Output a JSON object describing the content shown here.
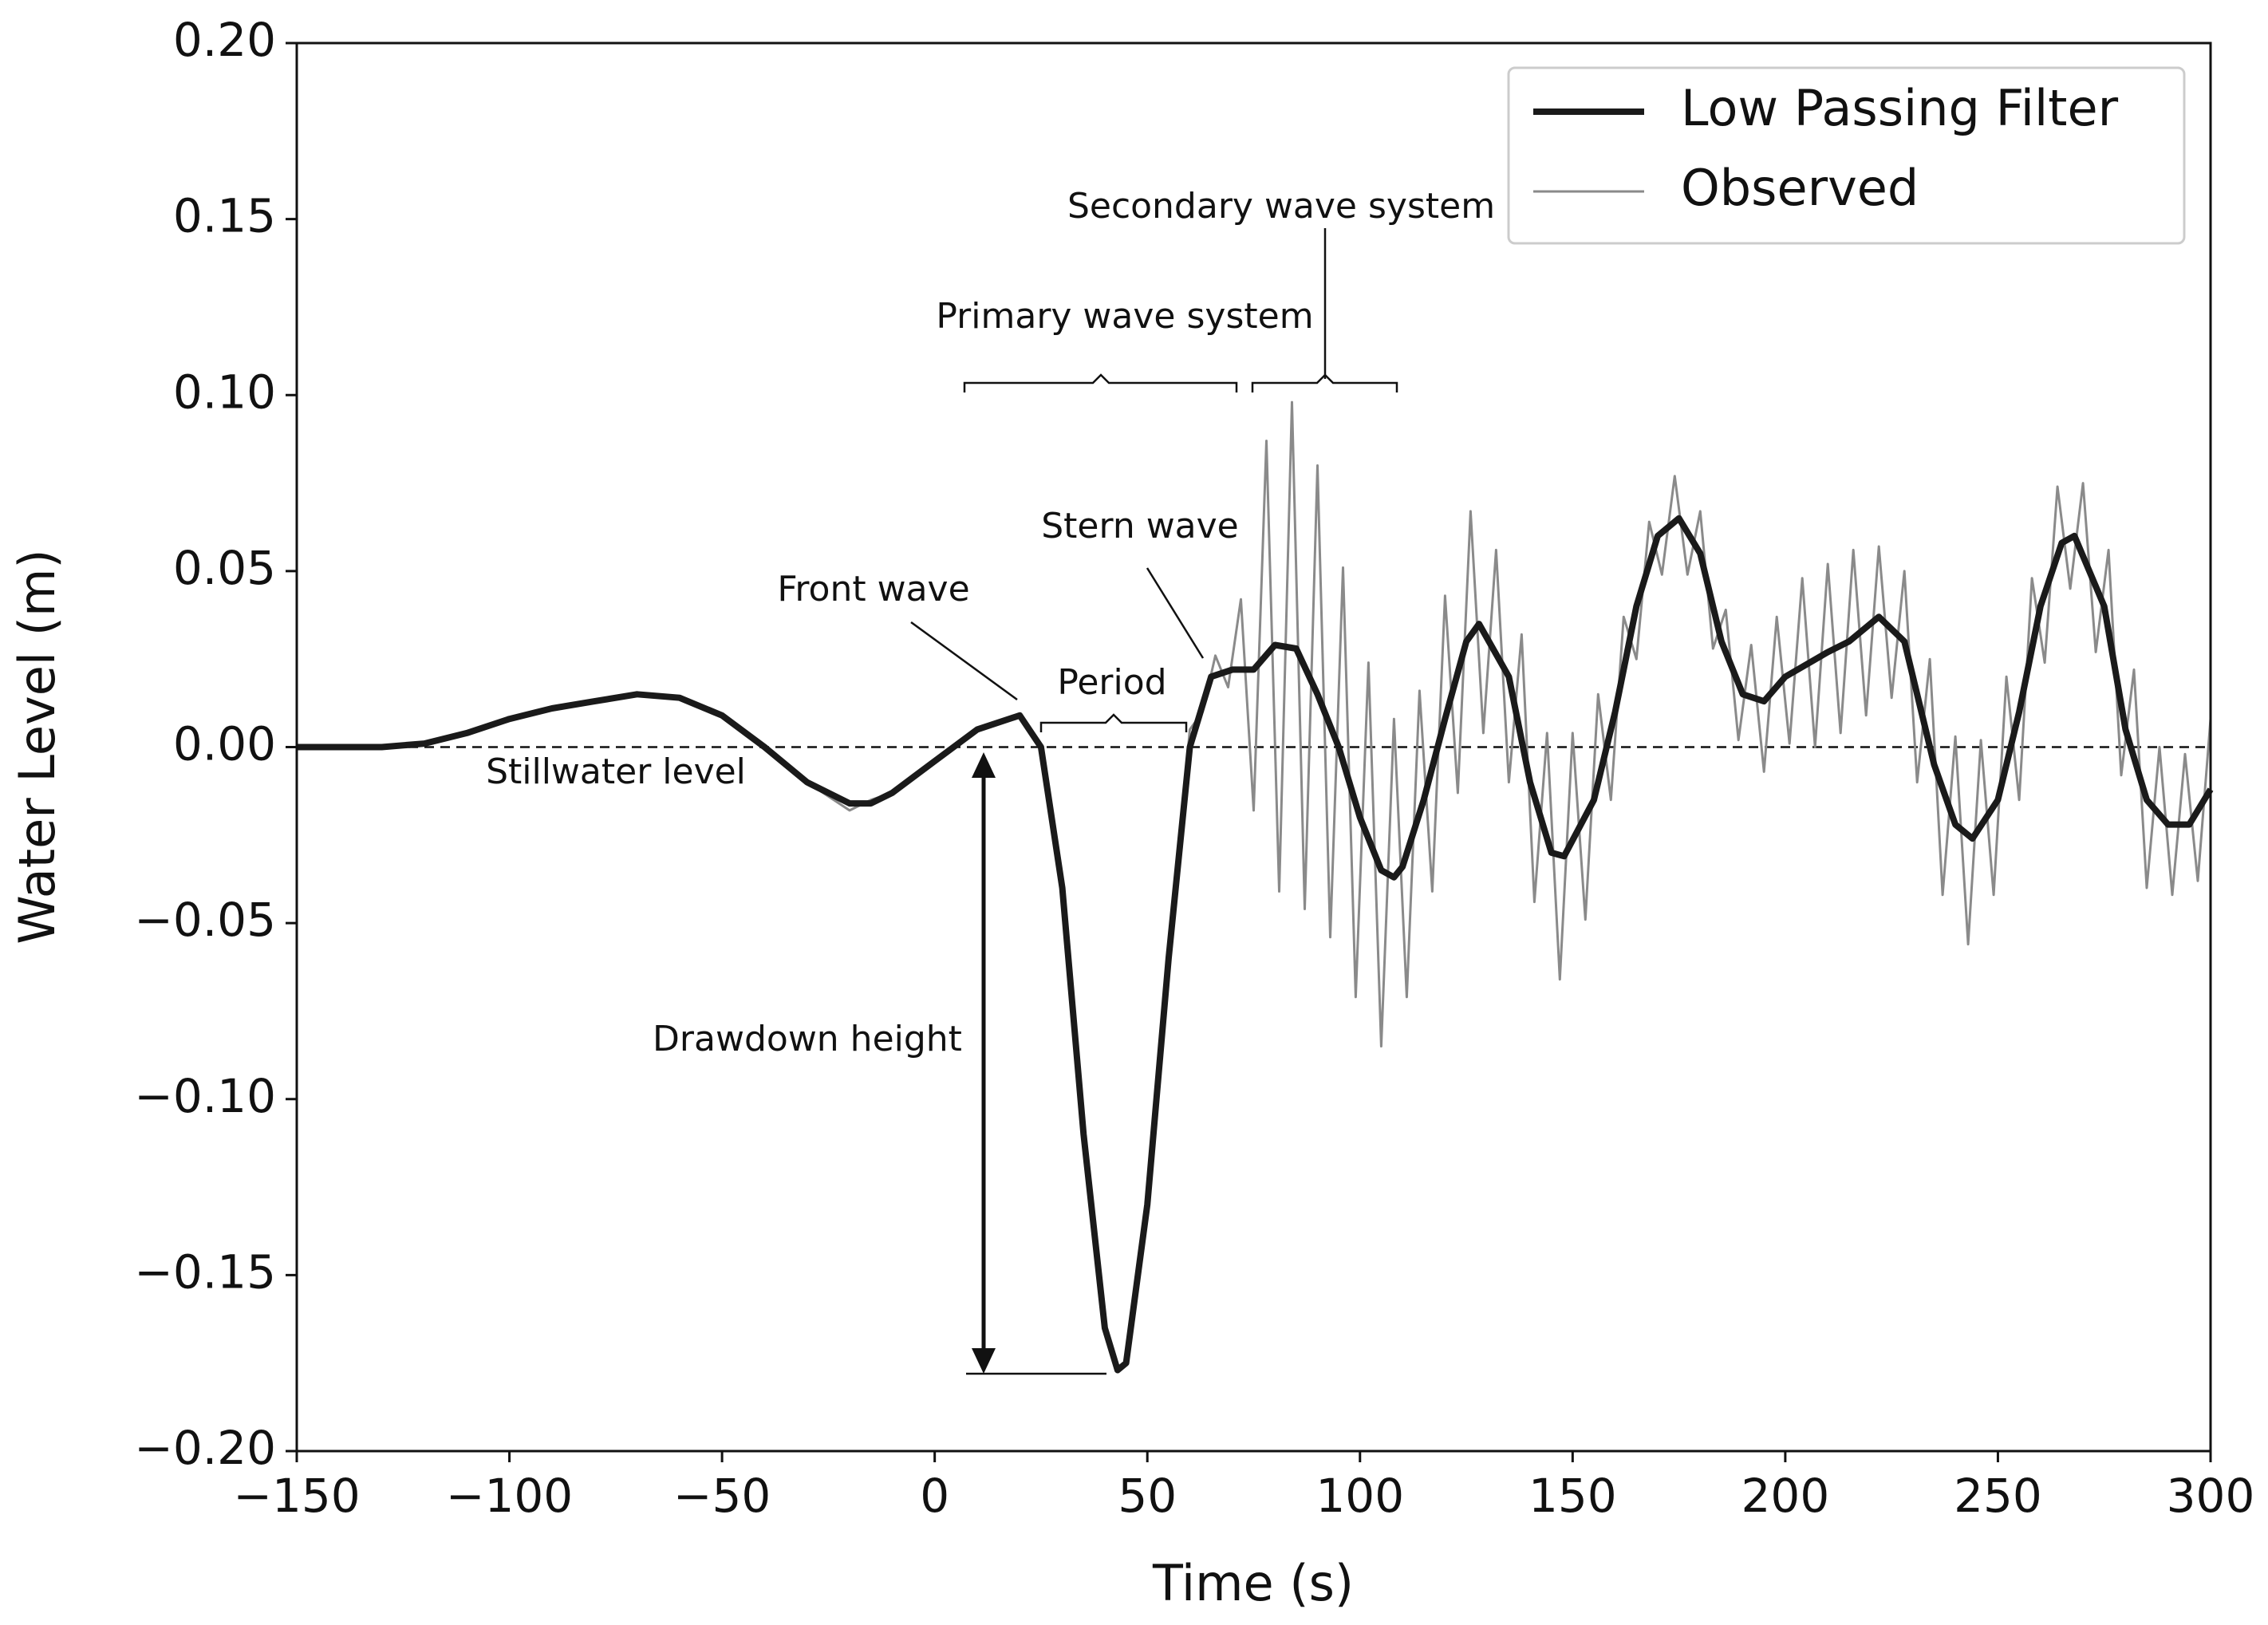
{
  "chart_data": {
    "type": "line",
    "xlabel": "Time (s)",
    "ylabel": "Water Level (m)",
    "xlim": [
      -150,
      300
    ],
    "ylim": [
      -0.2,
      0.2
    ],
    "xticks": [
      {
        "value": -150,
        "label": "−150"
      },
      {
        "value": -100,
        "label": "−100"
      },
      {
        "value": -50,
        "label": "−50"
      },
      0,
      50,
      100,
      150,
      200,
      250,
      300
    ],
    "yticks": [
      {
        "value": -0.2,
        "label": "−0.20"
      },
      {
        "value": -0.15,
        "label": "−0.15"
      },
      {
        "value": -0.1,
        "label": "−0.10"
      },
      {
        "value": -0.05,
        "label": "−0.05"
      },
      {
        "value": 0,
        "label": "0.00"
      },
      0.05,
      {
        "value": 0.1,
        "label": "0.10"
      },
      0.15,
      {
        "value": 0.2,
        "label": "0.20"
      }
    ],
    "legend": "upper right",
    "annotations": [
      "Secondary wave system",
      "Primary wave system",
      "Stern wave",
      "Front wave",
      "Period",
      "Stillwater level",
      "Drawdown height"
    ],
    "series": [
      {
        "name": "Low Passing Filter",
        "color": "#1a1a1a",
        "x": [
          -150,
          -140,
          -130,
          -120,
          -110,
          -100,
          -90,
          -80,
          -70,
          -60,
          -50,
          -40,
          -30,
          -20,
          -15,
          -10,
          0,
          10,
          20,
          25,
          30,
          35,
          40,
          43,
          45,
          50,
          55,
          60,
          65,
          70,
          75,
          80,
          85,
          90,
          95,
          100,
          105,
          108,
          110,
          115,
          120,
          125,
          128,
          135,
          140,
          145,
          148,
          155,
          160,
          165,
          170,
          175,
          180,
          185,
          190,
          195,
          200,
          210,
          215,
          222,
          228,
          235,
          240,
          244,
          250,
          255,
          260,
          265,
          268,
          275,
          280,
          285,
          290,
          295,
          300
        ],
        "values": [
          0,
          0,
          0,
          0.001,
          0.004,
          0.008,
          0.011,
          0.013,
          0.015,
          0.014,
          0.009,
          0.0,
          -0.01,
          -0.016,
          -0.016,
          -0.013,
          -0.004,
          0.005,
          0.009,
          0.0,
          -0.04,
          -0.11,
          -0.165,
          -0.177,
          -0.175,
          -0.13,
          -0.06,
          0.0,
          0.02,
          0.022,
          0.022,
          0.029,
          0.028,
          0.015,
          0.0,
          -0.02,
          -0.035,
          -0.037,
          -0.034,
          -0.015,
          0.008,
          0.03,
          0.035,
          0.02,
          -0.01,
          -0.03,
          -0.031,
          -0.015,
          0.01,
          0.04,
          0.06,
          0.065,
          0.055,
          0.03,
          0.015,
          0.013,
          0.02,
          0.027,
          0.03,
          0.037,
          0.03,
          -0.005,
          -0.022,
          -0.026,
          -0.015,
          0.01,
          0.04,
          0.058,
          0.06,
          0.04,
          0.005,
          -0.015,
          -0.022,
          -0.022,
          -0.012
        ]
      },
      {
        "name": "Observed",
        "color": "#8a8a8a",
        "x": [
          -150,
          -140,
          -130,
          -120,
          -110,
          -100,
          -90,
          -80,
          -70,
          -60,
          -50,
          -40,
          -30,
          -25,
          -20,
          -15,
          -10,
          0,
          10,
          20,
          25,
          30,
          35,
          40,
          43,
          45,
          50,
          55,
          60,
          63,
          66,
          69,
          72,
          75,
          78,
          81,
          84,
          87,
          90,
          93,
          96,
          99,
          102,
          105,
          108,
          111,
          114,
          117,
          120,
          123,
          126,
          129,
          132,
          135,
          138,
          141,
          144,
          147,
          150,
          153,
          156,
          159,
          162,
          165,
          168,
          171,
          174,
          177,
          180,
          183,
          186,
          189,
          192,
          195,
          198,
          201,
          204,
          207,
          210,
          213,
          216,
          219,
          222,
          225,
          228,
          231,
          234,
          237,
          240,
          243,
          246,
          249,
          252,
          255,
          258,
          261,
          264,
          267,
          270,
          273,
          276,
          279,
          282,
          285,
          288,
          291,
          294,
          297,
          300
        ],
        "values": [
          0,
          0,
          0,
          0.001,
          0.004,
          0.008,
          0.011,
          0.013,
          0.015,
          0.014,
          0.009,
          0.0,
          -0.01,
          -0.014,
          -0.018,
          -0.015,
          -0.013,
          -0.004,
          0.005,
          0.009,
          0.0,
          -0.04,
          -0.11,
          -0.165,
          -0.177,
          -0.175,
          -0.13,
          -0.06,
          0.005,
          0.01,
          0.026,
          0.017,
          0.042,
          -0.018,
          0.087,
          -0.041,
          0.098,
          -0.046,
          0.08,
          -0.054,
          0.051,
          -0.071,
          0.024,
          -0.085,
          0.008,
          -0.071,
          0.016,
          -0.041,
          0.043,
          -0.013,
          0.067,
          0.004,
          0.056,
          -0.01,
          0.032,
          -0.044,
          0.004,
          -0.066,
          0.004,
          -0.049,
          0.015,
          -0.015,
          0.037,
          0.025,
          0.064,
          0.049,
          0.077,
          0.049,
          0.067,
          0.028,
          0.039,
          0.002,
          0.029,
          -0.007,
          0.037,
          0.001,
          0.048,
          0.0,
          0.052,
          0.004,
          0.056,
          0.009,
          0.057,
          0.014,
          0.05,
          -0.01,
          0.025,
          -0.042,
          0.003,
          -0.056,
          0.002,
          -0.042,
          0.02,
          -0.015,
          0.048,
          0.024,
          0.074,
          0.045,
          0.075,
          0.027,
          0.056,
          -0.008,
          0.022,
          -0.04,
          0.0,
          -0.042,
          -0.002,
          -0.038,
          0.008
        ]
      }
    ]
  }
}
